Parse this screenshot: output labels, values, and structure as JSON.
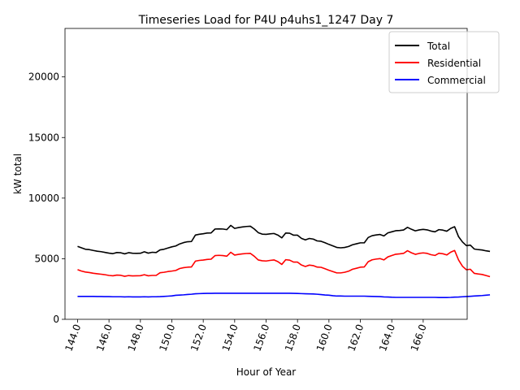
{
  "chart_data": {
    "type": "line",
    "title": "Timeseries Load for P4U p4uhs1_1247  Day 7",
    "xlabel": "Hour of Year",
    "ylabel": "kW total",
    "xlim": [
      143.2,
      168.8
    ],
    "ylim": [
      0,
      24000
    ],
    "xticks": [
      144,
      146,
      148,
      150,
      152,
      154,
      156,
      158,
      160,
      162,
      164,
      166
    ],
    "xtick_labels": [
      "144.0",
      "146.0",
      "148.0",
      "150.0",
      "152.0",
      "154.0",
      "156.0",
      "158.0",
      "160.0",
      "162.0",
      "164.0",
      "166.0"
    ],
    "yticks": [
      0,
      5000,
      10000,
      15000,
      20000
    ],
    "ytick_labels": [
      "0",
      "5000",
      "10000",
      "15000",
      "20000"
    ],
    "legend_position": "top-right",
    "grid": false,
    "x_start": 144.0,
    "x_step": 0.25,
    "series": [
      {
        "name": "Total",
        "color": "#000000",
        "values": [
          6020,
          5900,
          5780,
          5750,
          5680,
          5620,
          5580,
          5520,
          5460,
          5420,
          5510,
          5490,
          5400,
          5500,
          5450,
          5440,
          5450,
          5570,
          5460,
          5530,
          5510,
          5730,
          5780,
          5880,
          5980,
          6050,
          6220,
          6330,
          6400,
          6420,
          6950,
          7020,
          7060,
          7120,
          7130,
          7450,
          7460,
          7450,
          7400,
          7750,
          7500,
          7570,
          7620,
          7660,
          7680,
          7450,
          7150,
          7030,
          7010,
          7050,
          7080,
          6950,
          6720,
          7120,
          7100,
          6940,
          6940,
          6680,
          6550,
          6670,
          6620,
          6470,
          6440,
          6320,
          6180,
          6060,
          5930,
          5900,
          5930,
          6010,
          6150,
          6230,
          6310,
          6310,
          6750,
          6900,
          6960,
          7000,
          6880,
          7130,
          7220,
          7310,
          7330,
          7370,
          7590,
          7430,
          7300,
          7380,
          7420,
          7380,
          7280,
          7220,
          7400,
          7360,
          7270,
          7500,
          7640,
          6820,
          6380,
          6080,
          6120,
          5800,
          5750,
          5720,
          5650,
          5600
        ]
      },
      {
        "name": "Residential",
        "color": "#ff0000",
        "values": [
          4100,
          3980,
          3900,
          3860,
          3800,
          3760,
          3720,
          3680,
          3620,
          3590,
          3650,
          3630,
          3550,
          3610,
          3580,
          3590,
          3600,
          3680,
          3590,
          3620,
          3620,
          3840,
          3880,
          3940,
          3980,
          4030,
          4190,
          4260,
          4300,
          4320,
          4800,
          4860,
          4890,
          4940,
          4960,
          5260,
          5280,
          5260,
          5210,
          5530,
          5300,
          5360,
          5400,
          5430,
          5440,
          5200,
          4900,
          4830,
          4810,
          4860,
          4900,
          4760,
          4530,
          4920,
          4880,
          4720,
          4720,
          4480,
          4360,
          4470,
          4430,
          4310,
          4290,
          4170,
          4050,
          3940,
          3830,
          3830,
          3880,
          3970,
          4130,
          4210,
          4300,
          4320,
          4750,
          4910,
          4970,
          5010,
          4900,
          5150,
          5260,
          5370,
          5400,
          5440,
          5660,
          5490,
          5360,
          5440,
          5480,
          5440,
          5330,
          5270,
          5450,
          5410,
          5310,
          5540,
          5680,
          4900,
          4380,
          4090,
          4130,
          3790,
          3740,
          3700,
          3610,
          3520
        ]
      },
      {
        "name": "Commercial",
        "color": "#0000ff",
        "values": [
          1890,
          1890,
          1890,
          1890,
          1890,
          1880,
          1880,
          1870,
          1870,
          1860,
          1860,
          1860,
          1850,
          1860,
          1850,
          1850,
          1850,
          1860,
          1850,
          1860,
          1860,
          1870,
          1890,
          1910,
          1930,
          1980,
          2000,
          2020,
          2050,
          2070,
          2110,
          2120,
          2130,
          2140,
          2140,
          2150,
          2150,
          2150,
          2150,
          2150,
          2150,
          2150,
          2150,
          2150,
          2150,
          2150,
          2150,
          2150,
          2150,
          2150,
          2150,
          2150,
          2150,
          2150,
          2150,
          2140,
          2130,
          2120,
          2110,
          2100,
          2090,
          2070,
          2040,
          2010,
          1990,
          1950,
          1920,
          1920,
          1910,
          1910,
          1910,
          1910,
          1910,
          1910,
          1900,
          1890,
          1880,
          1870,
          1850,
          1840,
          1820,
          1810,
          1810,
          1810,
          1810,
          1810,
          1810,
          1810,
          1810,
          1810,
          1810,
          1810,
          1800,
          1800,
          1800,
          1810,
          1830,
          1840,
          1860,
          1880,
          1900,
          1920,
          1940,
          1960,
          1990,
          2020
        ]
      }
    ]
  }
}
